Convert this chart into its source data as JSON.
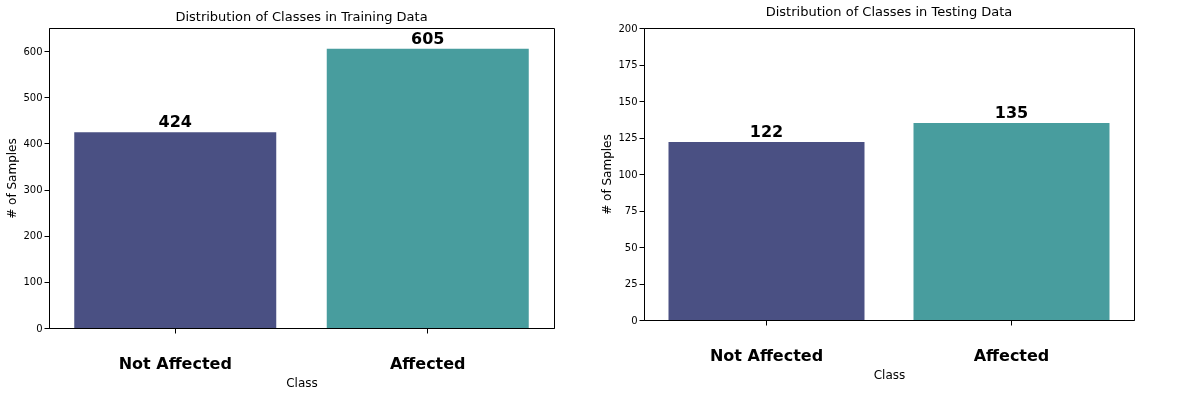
{
  "chart_data": [
    {
      "type": "bar",
      "title": "Distribution of Classes in Training Data",
      "xlabel": "Class",
      "ylabel": "# of Samples",
      "categories": [
        "Not Affected",
        "Affected"
      ],
      "values": [
        424,
        605
      ],
      "colors": [
        "#4a5083",
        "#489d9e"
      ],
      "ylim": [
        0,
        650
      ],
      "yticks": [
        0,
        100,
        200,
        300,
        400,
        500,
        600
      ],
      "data_labels": true
    },
    {
      "type": "bar",
      "title": "Distribution of Classes in Testing Data",
      "xlabel": "Class",
      "ylabel": "# of Samples",
      "categories": [
        "Not Affected",
        "Affected"
      ],
      "values": [
        122,
        135
      ],
      "colors": [
        "#4a5083",
        "#489d9e"
      ],
      "ylim": [
        0,
        200
      ],
      "yticks": [
        0,
        25,
        50,
        75,
        100,
        125,
        150,
        175,
        200
      ],
      "data_labels": true
    }
  ]
}
